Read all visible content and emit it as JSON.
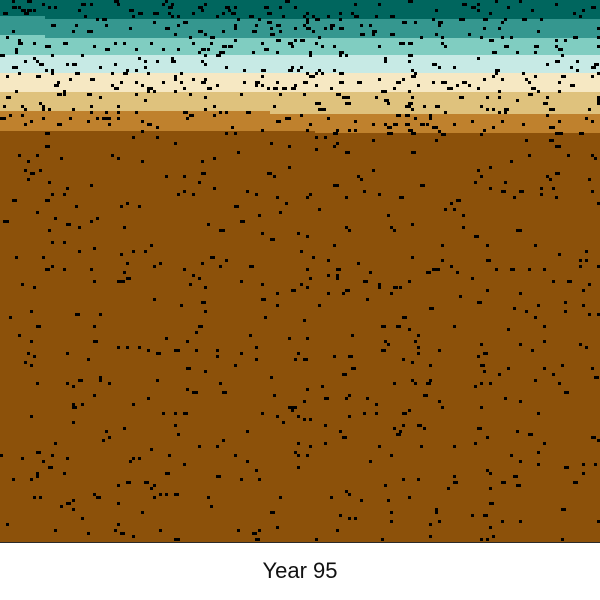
{
  "caption": "Year 95",
  "palette": {
    "band_colors": [
      "#00665e",
      "#35978f",
      "#80cdc1",
      "#c7eae5",
      "#f6e8c3",
      "#dfc27d",
      "#bf812d",
      "#8c510a"
    ],
    "speck_color": "#000000",
    "background": "#ffffff"
  }
}
